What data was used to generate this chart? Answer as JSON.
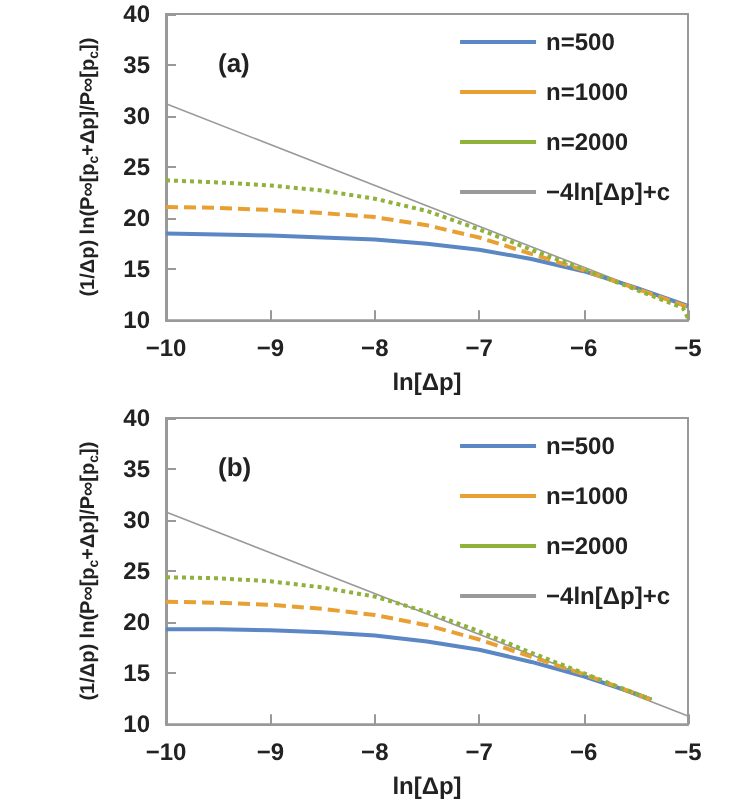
{
  "chart_data": [
    {
      "type": "line",
      "title": "(a)",
      "xlabel": "ln[Δp]",
      "ylabel": "(1/Δp) ln(P∞[p$_{c}$+Δp]/P∞[p$_{c}$])",
      "xlim": [
        -10,
        -5
      ],
      "xticks": [
        -10,
        -9,
        -8,
        -7,
        -6,
        -5
      ],
      "ylim": [
        10,
        40
      ],
      "yticks": [
        10,
        15,
        20,
        25,
        30,
        35,
        40
      ],
      "grid": false,
      "legend": "top right",
      "marker": "none",
      "series": [
        {
          "name": "n=500",
          "color": "#5b87c5",
          "line_style": "solid",
          "x": [
            -10,
            -9.5,
            -9,
            -8.5,
            -8,
            -7.5,
            -7,
            -6.5,
            -6,
            -5.5,
            -5
          ],
          "values": [
            18.5,
            18.4,
            18.3,
            18.1,
            17.9,
            17.5,
            16.9,
            16.0,
            14.8,
            13.2,
            11.4
          ]
        },
        {
          "name": "n=1000",
          "color": "#e8a033",
          "line_style": "dashed",
          "x": [
            -10,
            -9.5,
            -9,
            -8.5,
            -8,
            -7.5,
            -7,
            -6.5,
            -6,
            -5.5,
            -5
          ],
          "values": [
            21.1,
            21.0,
            20.8,
            20.5,
            20.1,
            19.3,
            18.1,
            16.5,
            14.9,
            13.1,
            11.3
          ]
        },
        {
          "name": "n=2000",
          "color": "#8fb23a",
          "line_style": "dotted",
          "x": [
            -10,
            -9.5,
            -9,
            -8.5,
            -8,
            -7.5,
            -7,
            -6.5,
            -6,
            -5.5,
            -5.05,
            -5
          ],
          "values": [
            23.7,
            23.5,
            23.2,
            22.7,
            21.9,
            20.7,
            18.9,
            16.9,
            15.0,
            13.0,
            11.2,
            10.2
          ]
        },
        {
          "name": "−4ln[Δp]+c",
          "color": "#999999",
          "line_style": "solid",
          "x": [
            -10,
            -5
          ],
          "values": [
            31.2,
            11.2
          ]
        }
      ]
    },
    {
      "type": "line",
      "title": "(b)",
      "xlabel": "ln[Δp]",
      "ylabel": "(1/Δp) ln(P∞[p$_{c}$+Δp]/P∞[p$_{c}$])",
      "xlim": [
        -10,
        -5
      ],
      "xticks": [
        -10,
        -9,
        -8,
        -7,
        -6,
        -5
      ],
      "ylim": [
        10,
        40
      ],
      "yticks": [
        10,
        15,
        20,
        25,
        30,
        35,
        40
      ],
      "grid": false,
      "legend": "top right",
      "marker": "none",
      "series": [
        {
          "name": "n=500",
          "color": "#5b87c5",
          "line_style": "solid",
          "x": [
            -10,
            -9.5,
            -9,
            -8.5,
            -8,
            -7.5,
            -7,
            -6.5,
            -6,
            -5.5,
            -5.35
          ],
          "values": [
            19.3,
            19.3,
            19.2,
            19.0,
            18.7,
            18.1,
            17.3,
            16.1,
            14.7,
            13.0,
            12.4
          ]
        },
        {
          "name": "n=1000",
          "color": "#e8a033",
          "line_style": "dashed",
          "x": [
            -10,
            -9.5,
            -9,
            -8.5,
            -8,
            -7.5,
            -7,
            -6.5,
            -6,
            -5.5,
            -5.35
          ],
          "values": [
            22.0,
            21.9,
            21.7,
            21.3,
            20.7,
            19.7,
            18.3,
            16.6,
            14.9,
            13.0,
            12.4
          ]
        },
        {
          "name": "n=2000",
          "color": "#8fb23a",
          "line_style": "dotted",
          "x": [
            -10,
            -9.5,
            -9,
            -8.5,
            -8,
            -7.5,
            -7,
            -6.5,
            -6,
            -5.5,
            -5.35
          ],
          "values": [
            24.4,
            24.3,
            24.0,
            23.4,
            22.5,
            21.0,
            19.1,
            17.0,
            15.0,
            13.0,
            12.4
          ]
        },
        {
          "name": "−4ln[Δp]+c",
          "color": "#999999",
          "line_style": "solid",
          "x": [
            -10,
            -5
          ],
          "values": [
            30.8,
            10.8
          ]
        }
      ]
    }
  ]
}
